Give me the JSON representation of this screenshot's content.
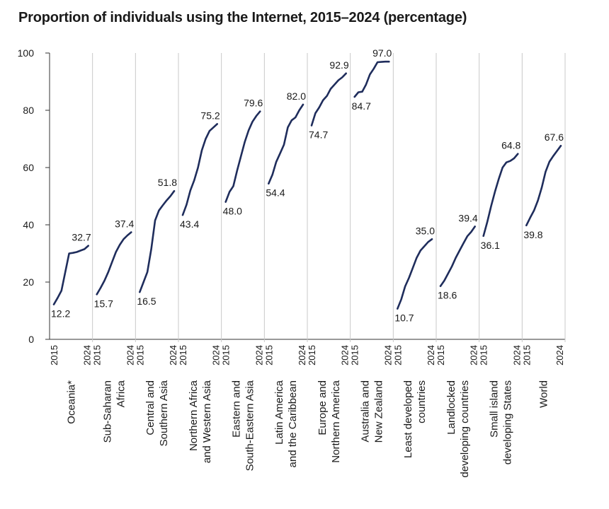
{
  "title": "Proportion of individuals using the Internet, 2015–2024 (percentage)",
  "chart_data": {
    "type": "line",
    "title": "Proportion of individuals using the Internet, 2015–2024 (percentage)",
    "ylim": [
      0,
      100
    ],
    "yticks": [
      0,
      20,
      40,
      60,
      80,
      100
    ],
    "grid": false,
    "line_color": "#1f2d5c",
    "divider_color": "#c8c8c8",
    "x_tick_labels": [
      "2015",
      "2024"
    ],
    "series": [
      {
        "name": "Oceania*",
        "label_lines": [
          "Oceania*"
        ],
        "start_label": "12.2",
        "end_label": "32.7",
        "values": [
          12.2,
          14.5,
          17,
          23.5,
          30,
          30.2,
          30.5,
          31,
          31.5,
          32.7
        ]
      },
      {
        "name": "Sub-Saharan Africa",
        "label_lines": [
          "Sub-Saharan",
          "Africa"
        ],
        "start_label": "15.7",
        "end_label": "37.4",
        "values": [
          15.7,
          18,
          20.5,
          23.5,
          27,
          30.5,
          33,
          35,
          36.3,
          37.4
        ]
      },
      {
        "name": "Central and Southern Asia",
        "label_lines": [
          "Central and",
          "Southern Asia"
        ],
        "start_label": "16.5",
        "end_label": "51.8",
        "values": [
          16.5,
          20,
          23.5,
          31.5,
          41.5,
          45,
          46.8,
          48.5,
          50,
          51.8
        ]
      },
      {
        "name": "Northern Africa and Western Asia",
        "label_lines": [
          "Northern Africa",
          "and Western Asia"
        ],
        "start_label": "43.4",
        "end_label": "75.2",
        "values": [
          43.4,
          47,
          52,
          55.5,
          60,
          66,
          70,
          72.8,
          74,
          75.2
        ]
      },
      {
        "name": "Eastern and South-Eastern Asia",
        "label_lines": [
          "Eastern and",
          "South-Eastern Asia"
        ],
        "start_label": "48.0",
        "end_label": "79.6",
        "values": [
          48,
          51.5,
          53.5,
          59,
          64,
          69,
          73,
          76,
          78,
          79.6
        ]
      },
      {
        "name": "Latin America and the Caribbean",
        "label_lines": [
          "Latin America",
          "and the Caribbean"
        ],
        "start_label": "54.4",
        "end_label": "82.0",
        "values": [
          54.4,
          57.5,
          62,
          65,
          68,
          74,
          76.5,
          77.5,
          80,
          82.0
        ]
      },
      {
        "name": "Europe and Northern America",
        "label_lines": [
          "Europe and",
          "Northern America"
        ],
        "start_label": "74.7",
        "end_label": "92.9",
        "values": [
          74.7,
          79,
          81,
          83.5,
          85,
          87.5,
          89,
          90.5,
          91.5,
          92.9
        ]
      },
      {
        "name": "Australia and New Zealand",
        "label_lines": [
          "Australia and",
          "New Zealand"
        ],
        "start_label": "84.7",
        "end_label": "97.0",
        "values": [
          84.7,
          86.3,
          86.5,
          89,
          92.5,
          94.5,
          96.8,
          96.9,
          97.0,
          97.0
        ]
      },
      {
        "name": "Least developed countries",
        "label_lines": [
          "Least developed",
          "countries"
        ],
        "start_label": "10.7",
        "end_label": "35.0",
        "values": [
          10.7,
          14,
          18.5,
          21.5,
          25,
          28.5,
          31,
          32.5,
          34,
          35.0
        ]
      },
      {
        "name": "Landlocked developing countries",
        "label_lines": [
          "Landlocked",
          "developing countries"
        ],
        "start_label": "18.6",
        "end_label": "39.4",
        "values": [
          18.6,
          20.5,
          23,
          25.5,
          28.5,
          31,
          33.5,
          36,
          37.5,
          39.4
        ]
      },
      {
        "name": "Small island developing States",
        "label_lines": [
          "Small island",
          "developing States"
        ],
        "start_label": "36.1",
        "end_label": "64.8",
        "values": [
          36.1,
          41,
          46.5,
          51.5,
          56,
          60,
          61.8,
          62.3,
          63.2,
          64.8
        ]
      },
      {
        "name": "World",
        "label_lines": [
          "World"
        ],
        "start_label": "39.8",
        "end_label": "67.6",
        "values": [
          39.8,
          42.5,
          45,
          48.5,
          53,
          58.5,
          62,
          64,
          65.8,
          67.6
        ]
      }
    ]
  }
}
